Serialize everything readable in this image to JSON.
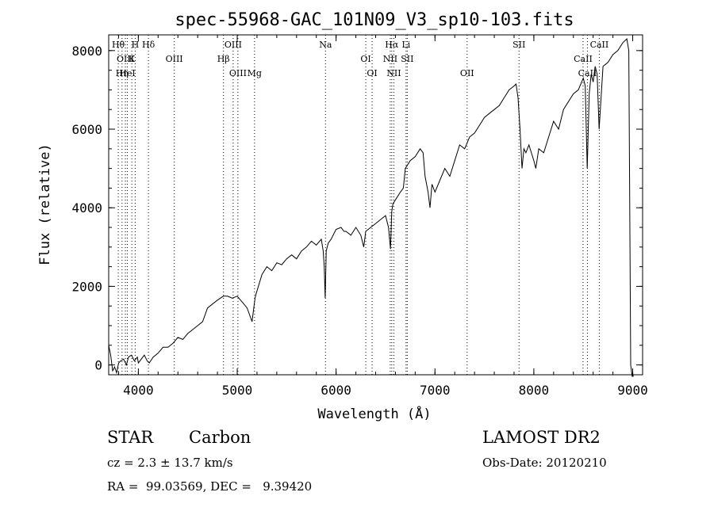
{
  "chart_data": {
    "type": "line",
    "title": "spec-55968-GAC_101N09_V3_sp10-103.fits",
    "xlabel": "Wavelength (Å)",
    "ylabel": "Flux (relative)",
    "xlim": [
      3700,
      9100
    ],
    "ylim": [
      -250,
      8400
    ],
    "x_ticks": [
      4000,
      5000,
      6000,
      7000,
      8000,
      9000
    ],
    "y_ticks": [
      0,
      2000,
      4000,
      6000,
      8000
    ],
    "grid": false,
    "series": [
      {
        "x": [
          3700,
          3720,
          3740,
          3760,
          3780,
          3800,
          3820,
          3850,
          3880,
          3900,
          3930,
          3960,
          3990,
          4000,
          4030,
          4060,
          4090,
          4110,
          4150,
          4200,
          4250,
          4300,
          4350,
          4400,
          4450,
          4500,
          4550,
          4600,
          4650,
          4700,
          4750,
          4800,
          4830,
          4860,
          4900,
          4950,
          5000,
          5050,
          5100,
          5150,
          5170,
          5180,
          5190,
          5250,
          5300,
          5350,
          5400,
          5450,
          5500,
          5550,
          5600,
          5650,
          5700,
          5750,
          5800,
          5850,
          5870,
          5880,
          5890,
          5900,
          5920,
          5950,
          6000,
          6050,
          6080,
          6100,
          6150,
          6200,
          6250,
          6280,
          6300,
          6350,
          6400,
          6450,
          6500,
          6530,
          6550,
          6563,
          6575,
          6600,
          6650,
          6680,
          6700,
          6750,
          6800,
          6850,
          6880,
          6900,
          6930,
          6950,
          6970,
          7000,
          7050,
          7100,
          7150,
          7200,
          7250,
          7300,
          7350,
          7400,
          7450,
          7500,
          7550,
          7600,
          7650,
          7700,
          7750,
          7800,
          7820,
          7840,
          7860,
          7880,
          7900,
          7920,
          7950,
          8000,
          8020,
          8050,
          8100,
          8150,
          8200,
          8250,
          8300,
          8350,
          8400,
          8450,
          8500,
          8520,
          8540,
          8560,
          8580,
          8600,
          8620,
          8640,
          8660,
          8700,
          8750,
          8800,
          8850,
          8900,
          8940,
          8960,
          8980,
          8995,
          9000,
          9005
        ],
        "y": [
          500,
          250,
          -150,
          -50,
          -200,
          50,
          100,
          150,
          0,
          200,
          250,
          100,
          200,
          50,
          150,
          250,
          100,
          50,
          200,
          300,
          450,
          450,
          550,
          700,
          650,
          800,
          900,
          1000,
          1100,
          1450,
          1550,
          1650,
          1700,
          1750,
          1750,
          1700,
          1750,
          1600,
          1450,
          1100,
          1500,
          1700,
          1800,
          2300,
          2500,
          2400,
          2600,
          2550,
          2700,
          2800,
          2700,
          2900,
          3000,
          3150,
          3050,
          3200,
          2900,
          2500,
          1700,
          2900,
          3100,
          3200,
          3450,
          3500,
          3400,
          3400,
          3300,
          3500,
          3300,
          3000,
          3400,
          3500,
          3600,
          3700,
          3800,
          3500,
          2950,
          3900,
          4100,
          4200,
          4400,
          4500,
          5000,
          5200,
          5300,
          5500,
          5400,
          4800,
          4400,
          4000,
          4600,
          4400,
          4700,
          5000,
          4800,
          5200,
          5600,
          5500,
          5800,
          5900,
          6100,
          6300,
          6400,
          6500,
          6600,
          6800,
          7000,
          7100,
          7150,
          6800,
          6000,
          5000,
          5500,
          5400,
          5600,
          5200,
          5000,
          5500,
          5400,
          5800,
          6200,
          6000,
          6500,
          6700,
          6900,
          7000,
          7300,
          7100,
          5000,
          6900,
          7400,
          7200,
          7600,
          7400,
          6000,
          7600,
          7700,
          7900,
          8000,
          8200,
          8300,
          8000,
          0,
          -300,
          -200,
          -300
        ]
      }
    ],
    "lines": [
      {
        "label": "Hθ",
        "x": 3797
      },
      {
        "label": "K",
        "x": 3934
      },
      {
        "label": "HeI",
        "x": 3889
      },
      {
        "label": "Hδ",
        "x": 4102
      },
      {
        "label": "OIII",
        "x": 3869
      },
      {
        "label": "Hη",
        "x": 3835
      },
      {
        "label": "H",
        "x": 3968
      },
      {
        "label": "OIII",
        "x": 4363
      },
      {
        "label": "OIII",
        "x": 5007
      },
      {
        "label": "OIII",
        "x": 4959
      },
      {
        "label": "Hβ",
        "x": 4861
      },
      {
        "label": "Mg",
        "x": 5175
      },
      {
        "label": "Na",
        "x": 5893
      },
      {
        "label": "OI",
        "x": 6300
      },
      {
        "label": "OI",
        "x": 6364
      },
      {
        "label": "Hα",
        "x": 6563
      },
      {
        "label": "NII",
        "x": 6548
      },
      {
        "label": "NII",
        "x": 6584
      },
      {
        "label": "Li",
        "x": 6708
      },
      {
        "label": "SII",
        "x": 6720
      },
      {
        "label": "OII",
        "x": 7325
      },
      {
        "label": "SII",
        "x": 7850
      },
      {
        "label": "CaII",
        "x": 8498
      },
      {
        "label": "CaII",
        "x": 8542
      },
      {
        "label": "CaII",
        "x": 8662
      }
    ]
  },
  "info": {
    "class": "STAR",
    "subclass": "Carbon",
    "survey": "LAMOST DR2",
    "cz": "cz = 2.3 ± 13.7 km/s",
    "obsdate": "Obs-Date: 20120210",
    "radec": "RA =  99.03569, DEC =   9.39420"
  }
}
